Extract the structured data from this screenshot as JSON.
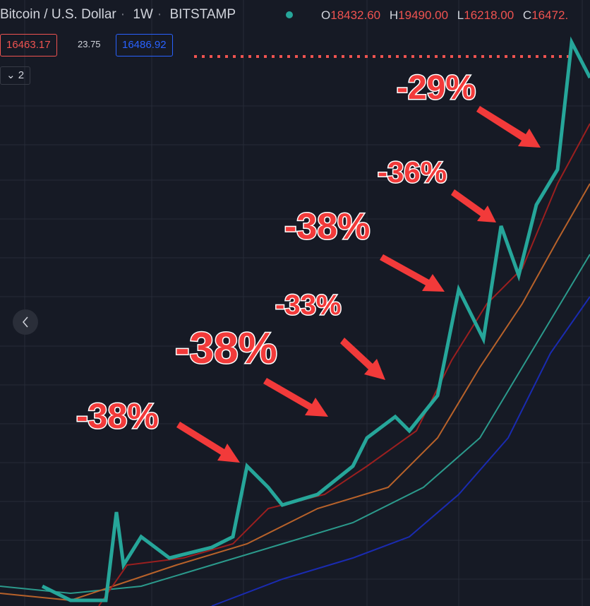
{
  "header": {
    "symbol": "Bitcoin / U.S. Dollar",
    "interval": "1W",
    "exchange": "BITSTAMP",
    "ohlc": [
      {
        "label": "O",
        "value": "18432.60"
      },
      {
        "label": "H",
        "value": "19490.00"
      },
      {
        "label": "L",
        "value": "16218.00"
      },
      {
        "label": "C",
        "value": "16472."
      }
    ]
  },
  "trade": {
    "sell": "16463.17",
    "spread": "23.75",
    "buy": "16486.92",
    "indicators": "2"
  },
  "annotations": [
    "-38%",
    "-38%",
    "-33%",
    "-38%",
    "-36%",
    "-29%"
  ]
}
